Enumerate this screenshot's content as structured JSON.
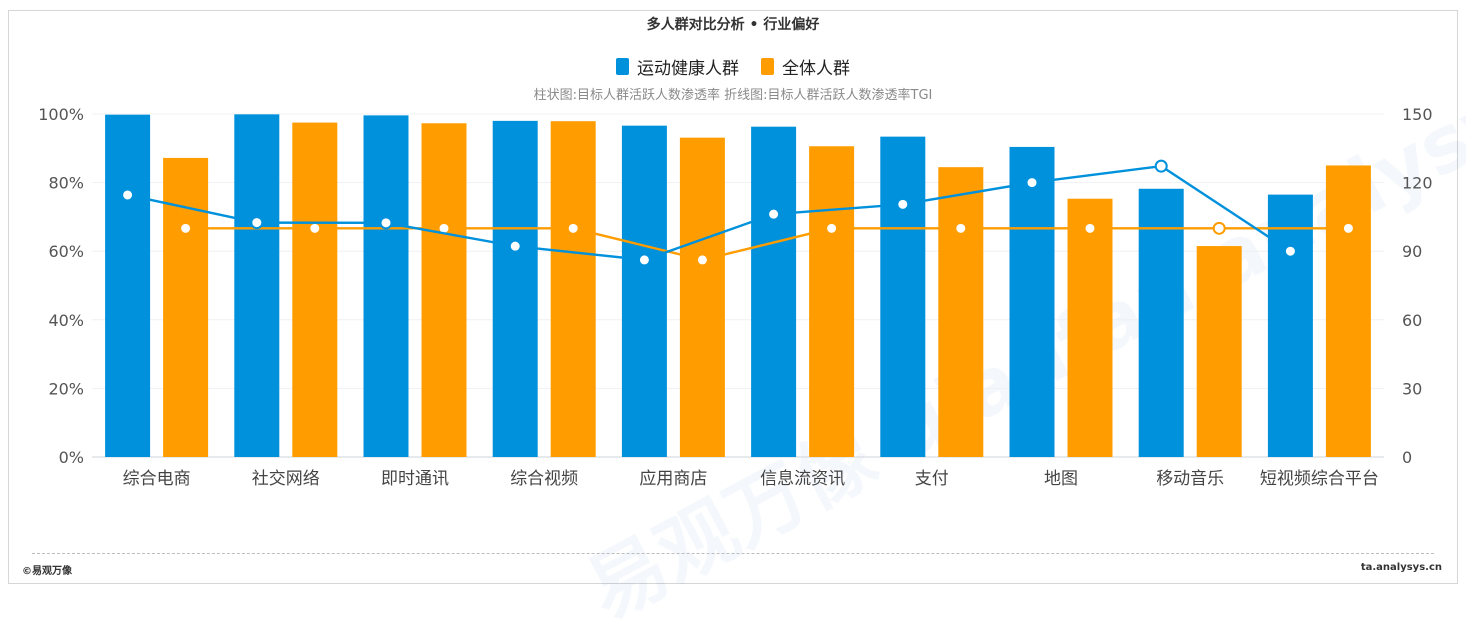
{
  "title": "多人群对比分析 • 行业偏好",
  "subtitle": "柱状图:目标人群活跃人数渗透率 折线图:目标人群活跃人数渗透率TGI",
  "footer": {
    "left": "©易观万像",
    "right": "ta.analysys.cn"
  },
  "watermark": "易观万像 qianfan.analysys.cn",
  "colors": {
    "blue": "#0091dc",
    "orange": "#ff9c00",
    "grid": "#eef1f4",
    "axis_text": "#555555"
  },
  "chart_data": {
    "type": "bar",
    "categories": [
      "综合电商",
      "社交网络",
      "即时通讯",
      "综合视频",
      "应用商店",
      "信息流资讯",
      "支付",
      "地图",
      "移动音乐",
      "短视频综合平台"
    ],
    "series": [
      {
        "name": "运动健康人群",
        "kind": "bar",
        "axis": "left",
        "color": "#0091dc",
        "values": [
          99.8,
          99.9,
          99.6,
          98.0,
          96.6,
          96.3,
          93.4,
          90.4,
          78.2,
          76.5
        ]
      },
      {
        "name": "全体人群",
        "kind": "bar",
        "axis": "left",
        "color": "#ff9c00",
        "values": [
          87.2,
          97.5,
          97.3,
          97.9,
          93.1,
          90.6,
          84.5,
          75.3,
          61.5,
          85.0
        ]
      },
      {
        "kind": "line",
        "axis": "right",
        "color": "#0091dc",
        "values": [
          114.6,
          102.5,
          102.4,
          92.2,
          86.2,
          106.2,
          110.5,
          120.0,
          127.2,
          90.0
        ]
      },
      {
        "kind": "line",
        "axis": "right",
        "color": "#ff9c00",
        "values": [
          100,
          100,
          100,
          100,
          86.2,
          100,
          100,
          100,
          100,
          100
        ]
      }
    ],
    "y_left": {
      "min": 0,
      "max": 100,
      "ticks": [
        "0%",
        "20%",
        "40%",
        "60%",
        "80%",
        "100%"
      ]
    },
    "y_right": {
      "min": 0,
      "max": 150,
      "ticks": [
        "0",
        "30",
        "60",
        "90",
        "120",
        "150"
      ]
    },
    "legend": [
      "运动健康人群",
      "全体人群"
    ],
    "legend_position": "top-center",
    "grid": true
  }
}
